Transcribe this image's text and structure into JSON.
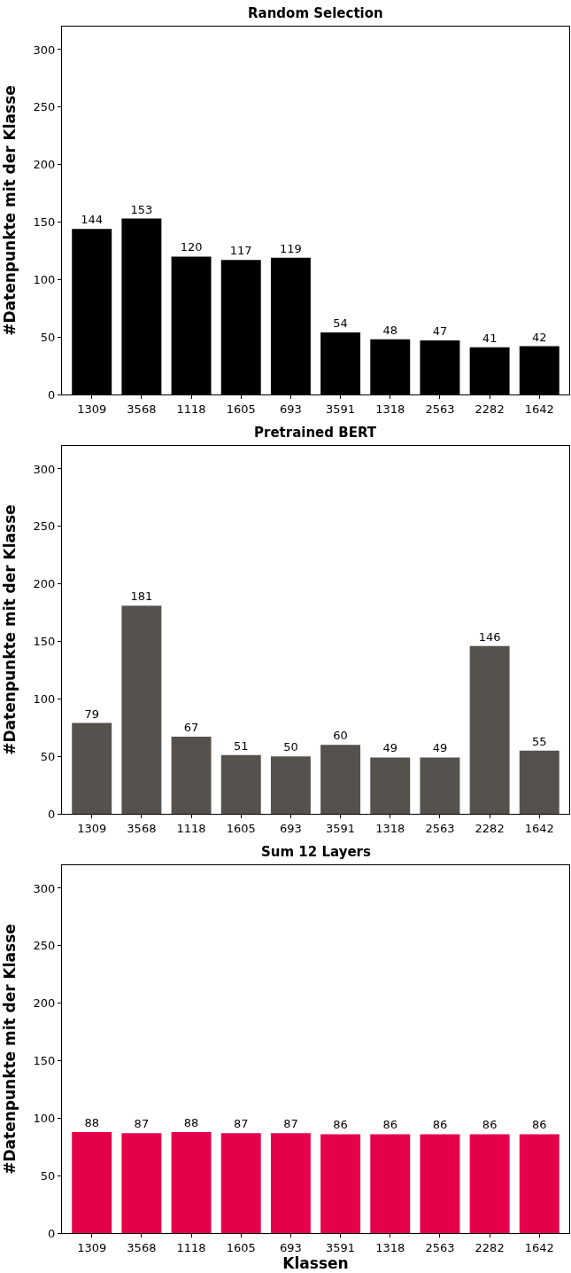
{
  "chart_data": [
    {
      "type": "bar",
      "title": "Random Selection",
      "ylabel": "#Datenpunkte mit der Klasse",
      "categories": [
        "1309",
        "3568",
        "1118",
        "1605",
        "693",
        "3591",
        "1318",
        "2563",
        "2282",
        "1642"
      ],
      "values": [
        144,
        153,
        120,
        117,
        119,
        54,
        48,
        47,
        41,
        42
      ],
      "color": "#000000",
      "ylim": [
        0,
        320
      ],
      "yticks": [
        0,
        50,
        100,
        150,
        200,
        250,
        300
      ],
      "data_labels": true
    },
    {
      "type": "bar",
      "title": "Pretrained BERT",
      "ylabel": "#Datenpunkte mit der Klasse",
      "categories": [
        "1309",
        "3568",
        "1118",
        "1605",
        "693",
        "3591",
        "1318",
        "2563",
        "2282",
        "1642"
      ],
      "values": [
        79,
        181,
        67,
        51,
        50,
        60,
        49,
        49,
        146,
        55
      ],
      "color": "#55514c",
      "ylim": [
        0,
        320
      ],
      "yticks": [
        0,
        50,
        100,
        150,
        200,
        250,
        300
      ],
      "data_labels": true
    },
    {
      "type": "bar",
      "title": "Sum 12 Layers",
      "ylabel": "#Datenpunkte mit der Klasse",
      "xlabel": "Klassen",
      "categories": [
        "1309",
        "3568",
        "1118",
        "1605",
        "693",
        "3591",
        "1318",
        "2563",
        "2282",
        "1642"
      ],
      "values": [
        88,
        87,
        88,
        87,
        87,
        86,
        86,
        86,
        86,
        86
      ],
      "color": "#e5004a",
      "ylim": [
        0,
        320
      ],
      "yticks": [
        0,
        50,
        100,
        150,
        200,
        250,
        300
      ],
      "data_labels": true
    }
  ]
}
